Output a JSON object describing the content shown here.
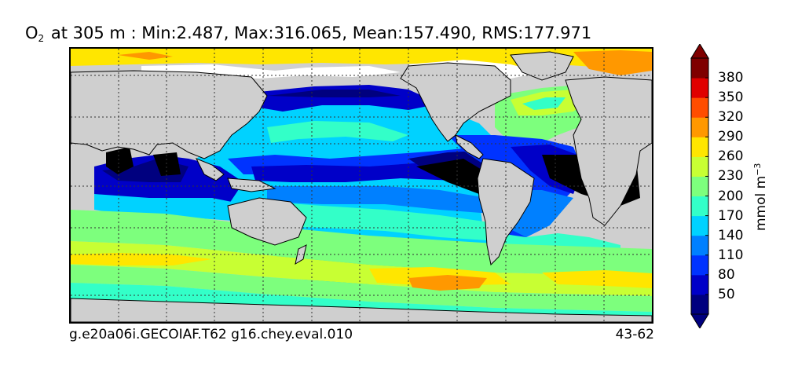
{
  "title": {
    "species_main": "O",
    "species_sub": "2",
    "rest": " at 305 m : Min:2.487, Max:316.065, Mean:157.490, RMS:177.971"
  },
  "footer": {
    "case_name": "g.e20a06i.GECOIAF.T62 g16.chey.eval.010",
    "years": "43-62"
  },
  "colorbar": {
    "unit_main": "mmol m",
    "unit_exp": "−3",
    "ticks": [
      "50",
      "80",
      "110",
      "140",
      "170",
      "200",
      "230",
      "260",
      "290",
      "320",
      "350",
      "380"
    ],
    "colors": [
      "#00007f",
      "#0000c8",
      "#0033ff",
      "#0080ff",
      "#00d2ff",
      "#33ffc8",
      "#7dff7d",
      "#c8ff33",
      "#ffe600",
      "#ff9800",
      "#ff4d00",
      "#e00000",
      "#7f0000"
    ],
    "extend": "both"
  },
  "map": {
    "land_color": "#cfcfcf",
    "ice_color": "#ffffff",
    "grid_style": "dotted"
  }
}
